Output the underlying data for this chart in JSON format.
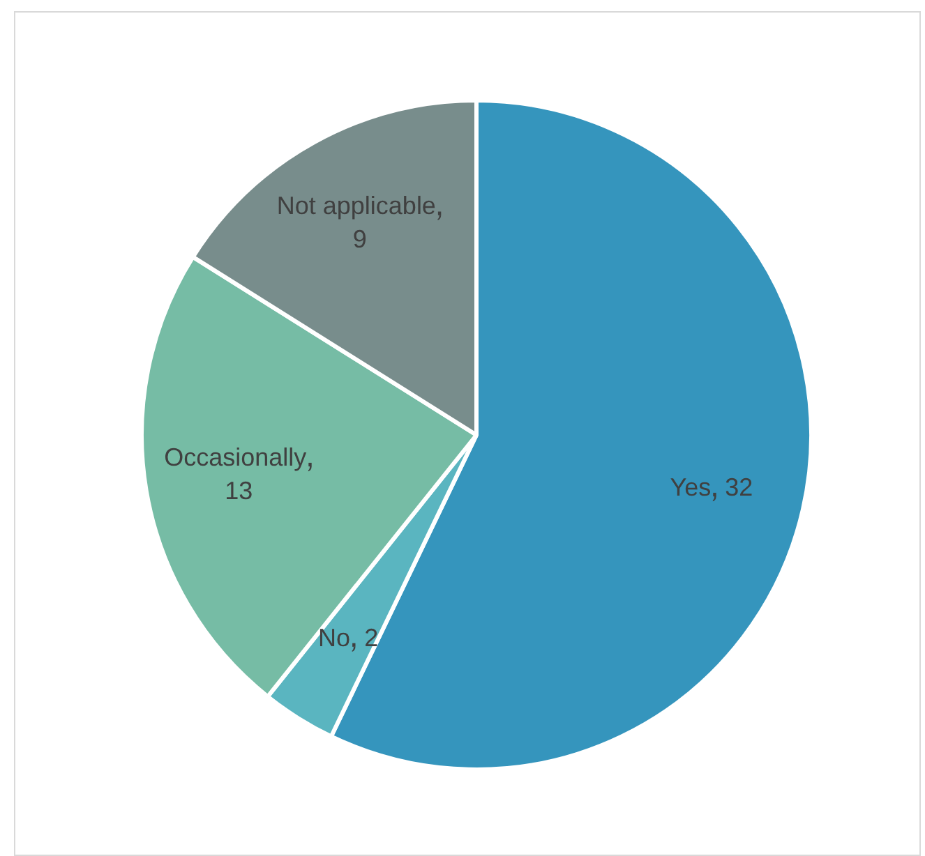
{
  "chart_data": {
    "type": "pie",
    "categories": [
      "Yes",
      "No",
      "Occasionally",
      "Not applicable"
    ],
    "values": [
      32,
      2,
      13,
      9
    ],
    "colors": [
      "#3595bd",
      "#5ab5c0",
      "#76bca5",
      "#788d8c"
    ],
    "data_labels": true,
    "legend": false
  }
}
